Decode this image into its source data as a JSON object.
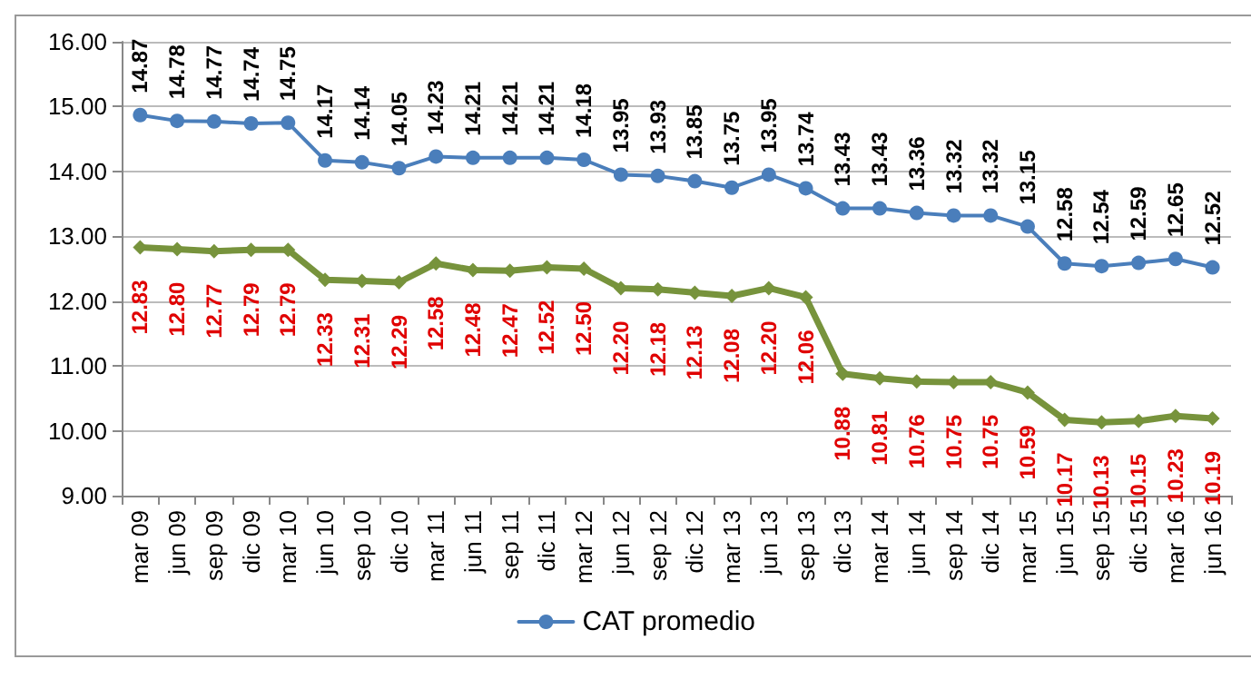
{
  "chart_data": {
    "type": "line",
    "categories": [
      "mar 09",
      "jun 09",
      "sep 09",
      "dic 09",
      "mar 10",
      "jun 10",
      "sep 10",
      "dic 10",
      "mar 11",
      "jun 11",
      "sep 11",
      "dic 11",
      "mar 12",
      "jun 12",
      "sep 12",
      "dic 12",
      "mar 13",
      "jun 13",
      "sep 13",
      "dic 13",
      "mar 14",
      "jun 14",
      "sep 14",
      "dic 14",
      "mar 15",
      "jun 15",
      "sep 15",
      "dic 15",
      "mar 16",
      "jun 16"
    ],
    "series": [
      {
        "name": "CAT promedio",
        "color": "#4a7ebb",
        "marker": "circle",
        "values": [
          14.87,
          14.78,
          14.77,
          14.74,
          14.75,
          14.17,
          14.14,
          14.05,
          14.23,
          14.21,
          14.21,
          14.21,
          14.18,
          13.95,
          13.93,
          13.85,
          13.75,
          13.95,
          13.74,
          13.43,
          13.43,
          13.36,
          13.32,
          13.32,
          13.15,
          12.58,
          12.54,
          12.59,
          12.65,
          12.52
        ],
        "value_labels": [
          "14.87",
          "14.78",
          "14.77",
          "14.74",
          "14.75",
          "14.17",
          "14.14",
          "14.05",
          "14.23",
          "14.21",
          "14.21",
          "14.21",
          "14.18",
          "13.95",
          "13.93",
          "13.85",
          "13.75",
          "13.95",
          "13.74",
          "13.43",
          "13.43",
          "13.36",
          "13.32",
          "13.32",
          "13.15",
          "12.58",
          "12.54",
          "12.59",
          "12.65",
          "12.52"
        ]
      },
      {
        "color": "#77933c",
        "marker": "diamond",
        "values": [
          12.83,
          12.8,
          12.77,
          12.79,
          12.79,
          12.33,
          12.31,
          12.29,
          12.58,
          12.48,
          12.47,
          12.52,
          12.5,
          12.2,
          12.18,
          12.13,
          12.08,
          12.2,
          12.06,
          10.88,
          10.81,
          10.76,
          10.75,
          10.75,
          10.59,
          10.17,
          10.13,
          10.15,
          10.23,
          10.19
        ],
        "value_labels": [
          "12.83",
          "12.80",
          "12.77",
          "12.79",
          "12.79",
          "12.33",
          "12.31",
          "12.29",
          "12.58",
          "12.48",
          "12.47",
          "12.52",
          "12.50",
          "12.20",
          "12.18",
          "12.13",
          "12.08",
          "12.20",
          "12.06",
          "10.88",
          "10.81",
          "10.76",
          "10.75",
          "10.75",
          "10.59",
          "10.17",
          "10.13",
          "10.15",
          "10.23",
          "10.19"
        ]
      }
    ],
    "ylim": [
      9,
      16
    ],
    "yticks": [
      {
        "value": 9,
        "label": "9.00"
      },
      {
        "value": 10,
        "label": "10.00"
      },
      {
        "value": 11,
        "label": "11.00"
      },
      {
        "value": 12,
        "label": "12.00"
      },
      {
        "value": 13,
        "label": "13.00"
      },
      {
        "value": 14,
        "label": "14.00"
      },
      {
        "value": 15,
        "label": "15.00"
      },
      {
        "value": 16,
        "label": "16.00"
      }
    ],
    "grid": "y",
    "legend": "bottom",
    "line_style": "solid"
  }
}
